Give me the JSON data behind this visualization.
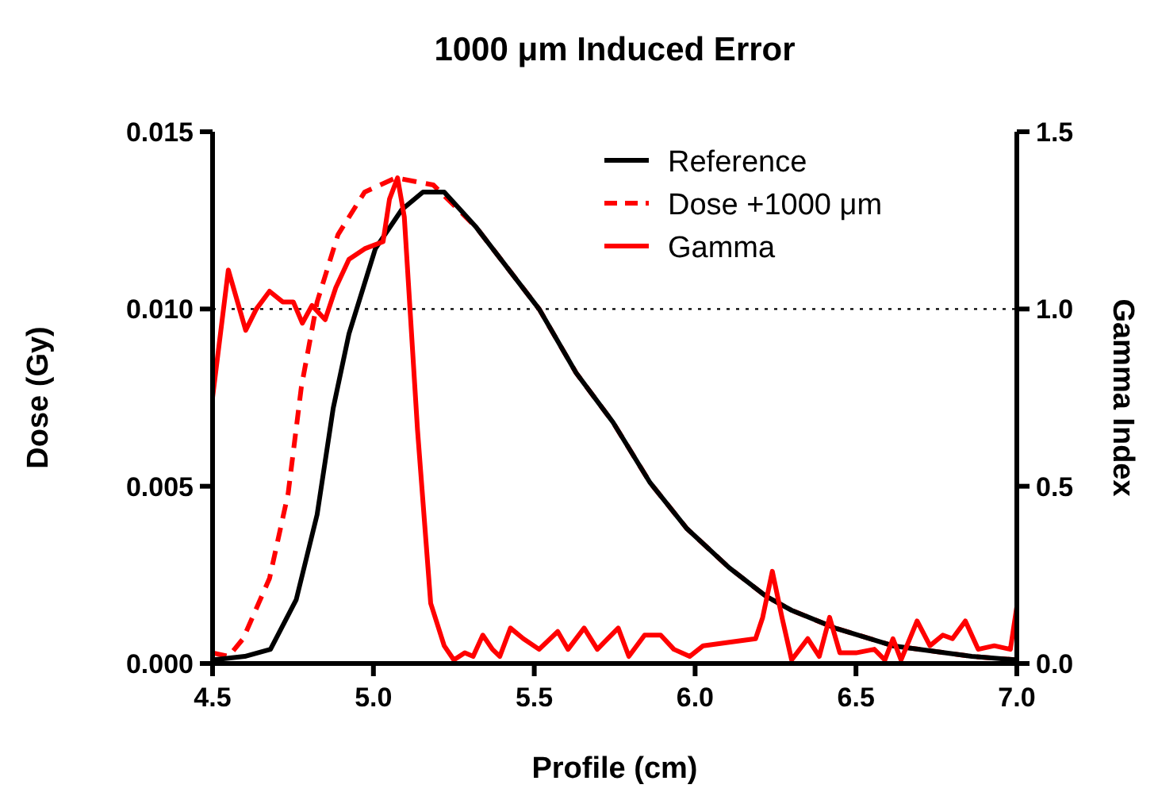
{
  "chart_data": {
    "type": "line",
    "title": "1000 μm Induced Error",
    "xlabel": "Profile (cm)",
    "ylabel": "Dose  (Gy)",
    "y2label": "Gamma Index",
    "xlim": [
      4.5,
      7.0
    ],
    "xticks": [
      {
        "value": 4.5,
        "label": "4.5"
      },
      {
        "value": 5.0,
        "label": "5.0"
      },
      {
        "value": 5.5,
        "label": "5.5"
      },
      {
        "value": 6.0,
        "label": "6.0"
      },
      {
        "value": 6.5,
        "label": "6.5"
      },
      {
        "value": 7.0,
        "label": "7.0"
      }
    ],
    "ylim": [
      0,
      0.015
    ],
    "yticks": [
      {
        "value": 0,
        "label": "0.000"
      },
      {
        "value": 0.005,
        "label": "0.005"
      },
      {
        "value": 0.01,
        "label": "0.010"
      },
      {
        "value": 0.015,
        "label": "0.015"
      }
    ],
    "y2lim": [
      0,
      1.5
    ],
    "y2ticks": [
      {
        "value": 0,
        "label": "0.0"
      },
      {
        "value": 0.5,
        "label": "0.5"
      },
      {
        "value": 1.0,
        "label": "1.0"
      },
      {
        "value": 1.5,
        "label": "1.5"
      }
    ],
    "grid": false,
    "legend": "top right",
    "marker": "none",
    "ref_lines": [
      {
        "axis": "y2",
        "value": 1.0,
        "color": "#000000",
        "line_style": "dotted"
      }
    ],
    "series": [
      {
        "name": "Dose +1000 μm",
        "color": "#ff0000",
        "line_style": "dashed",
        "x": [
          4.5,
          4.55,
          4.595,
          4.677,
          4.735,
          4.776,
          4.825,
          4.89,
          4.973,
          5.07,
          5.186,
          5.32,
          5.515,
          5.63,
          5.745,
          5.86,
          5.975,
          6.106,
          6.22,
          6.3,
          6.435,
          6.615,
          6.86,
          7.0
        ],
        "values": [
          0.0003,
          0.0002,
          0.0007,
          0.0024,
          0.0048,
          0.0078,
          0.0102,
          0.0121,
          0.0133,
          0.0137,
          0.0135,
          0.0123,
          0.01,
          0.0082,
          0.0068,
          0.0051,
          0.0038,
          0.0027,
          0.0019,
          0.0015,
          0.001,
          0.0005,
          0.0002,
          0.0001
        ]
      },
      {
        "name": "Reference",
        "color": "#000000",
        "line_style": "solid",
        "x": [
          4.5,
          4.6,
          4.68,
          4.76,
          4.825,
          4.875,
          4.924,
          5.006,
          5.088,
          5.154,
          5.22,
          5.32,
          5.515,
          5.63,
          5.745,
          5.86,
          5.975,
          6.106,
          6.22,
          6.3,
          6.435,
          6.615,
          6.86,
          7.0
        ],
        "values": [
          0.0001,
          0.0002,
          0.0004,
          0.0018,
          0.0042,
          0.0072,
          0.0093,
          0.0117,
          0.0128,
          0.0133,
          0.0133,
          0.0123,
          0.01,
          0.0082,
          0.0068,
          0.0051,
          0.0038,
          0.0027,
          0.0019,
          0.0015,
          0.001,
          0.0005,
          0.0002,
          0.0001
        ]
      },
      {
        "name": "Gamma",
        "color": "#ff0000",
        "line_style": "solid",
        "axis": "y2",
        "x": [
          4.5,
          4.549,
          4.603,
          4.636,
          4.677,
          4.718,
          4.751,
          4.779,
          4.809,
          4.85,
          4.883,
          4.924,
          4.973,
          5.03,
          5.05,
          5.075,
          5.096,
          5.137,
          5.178,
          5.22,
          5.25,
          5.284,
          5.31,
          5.34,
          5.37,
          5.393,
          5.426,
          5.466,
          5.515,
          5.573,
          5.605,
          5.655,
          5.696,
          5.761,
          5.794,
          5.843,
          5.893,
          5.934,
          5.983,
          6.025,
          6.106,
          6.188,
          6.21,
          6.24,
          6.27,
          6.3,
          6.35,
          6.386,
          6.418,
          6.45,
          6.5,
          6.557,
          6.59,
          6.615,
          6.64,
          6.69,
          6.73,
          6.77,
          6.8,
          6.84,
          6.88,
          6.93,
          6.98,
          7.0
        ],
        "values": [
          0.75,
          1.11,
          0.94,
          1.0,
          1.05,
          1.02,
          1.02,
          0.96,
          1.01,
          0.97,
          1.06,
          1.14,
          1.17,
          1.19,
          1.31,
          1.37,
          1.26,
          0.66,
          0.17,
          0.05,
          0.01,
          0.03,
          0.02,
          0.08,
          0.04,
          0.02,
          0.1,
          0.07,
          0.04,
          0.09,
          0.04,
          0.1,
          0.04,
          0.1,
          0.02,
          0.08,
          0.08,
          0.04,
          0.02,
          0.05,
          0.06,
          0.07,
          0.13,
          0.26,
          0.13,
          0.01,
          0.07,
          0.02,
          0.13,
          0.03,
          0.03,
          0.04,
          0.01,
          0.07,
          0.01,
          0.12,
          0.05,
          0.08,
          0.07,
          0.12,
          0.04,
          0.05,
          0.04,
          0.16
        ]
      }
    ]
  }
}
